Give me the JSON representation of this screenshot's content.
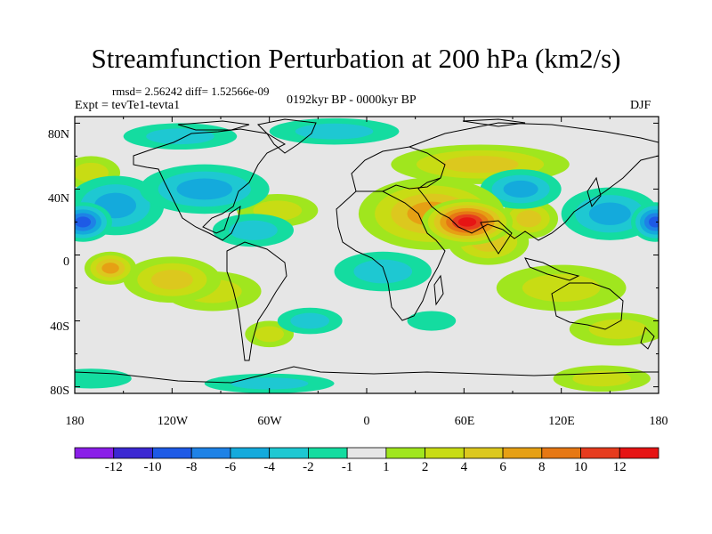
{
  "title": "Streamfunction Perturbation at 200 hPa (km2/s)",
  "stats": "rmsd= 2.56242 diff= 1.52566e-09",
  "experiment": "Expt = tevTe1-tevta1",
  "period": "0192kyr BP - 0000kyr BP",
  "season": "DJF",
  "lat_ticks": [
    "80N",
    "40N",
    "0",
    "40S",
    "80S"
  ],
  "lon_ticks": [
    "180",
    "120W",
    "60W",
    "0",
    "60E",
    "120E",
    "180"
  ],
  "colorbar": {
    "labels": [
      "-12",
      "-10",
      "-8",
      "-6",
      "-4",
      "-2",
      "-1",
      "1",
      "2",
      "4",
      "6",
      "8",
      "10",
      "12"
    ],
    "colors": [
      "#8a1ee8",
      "#3c28d2",
      "#1e5ae6",
      "#1e82e6",
      "#14aadc",
      "#1ec8d2",
      "#14dca0",
      "#e6e6e6",
      "#a0e61e",
      "#c8dc14",
      "#dcc81e",
      "#e6a014",
      "#e67814",
      "#e63c1e",
      "#e61414"
    ]
  },
  "map": {
    "background_color": "#e6e6e6",
    "anomalies": [
      {
        "lon": 62,
        "lat": 20,
        "value": 12,
        "rx": 28,
        "ry": 14
      },
      {
        "lon": 40,
        "lat": 25,
        "value": 6,
        "rx": 45,
        "ry": 22
      },
      {
        "lon": 75,
        "lat": 8,
        "value": 4,
        "rx": 25,
        "ry": 14
      },
      {
        "lon": 100,
        "lat": 22,
        "value": 4,
        "rx": 18,
        "ry": 12
      },
      {
        "lon": 70,
        "lat": 55,
        "value": 4,
        "rx": 55,
        "ry": 12
      },
      {
        "lon": -158,
        "lat": -8,
        "value": 6,
        "rx": 16,
        "ry": 10
      },
      {
        "lon": -120,
        "lat": -15,
        "value": 4,
        "rx": 30,
        "ry": 14
      },
      {
        "lon": -95,
        "lat": -22,
        "value": 2,
        "rx": 30,
        "ry": 12
      },
      {
        "lon": 120,
        "lat": -20,
        "value": 2,
        "rx": 40,
        "ry": 14
      },
      {
        "lon": 155,
        "lat": -45,
        "value": 2,
        "rx": 30,
        "ry": 10
      },
      {
        "lon": -55,
        "lat": 27,
        "value": 2,
        "rx": 25,
        "ry": 10
      },
      {
        "lon": -60,
        "lat": -48,
        "value": 2,
        "rx": 15,
        "ry": 8
      },
      {
        "lon": -170,
        "lat": 50,
        "value": 2,
        "rx": 18,
        "ry": 10
      },
      {
        "lon": 145,
        "lat": -75,
        "value": 2,
        "rx": 30,
        "ry": 8
      },
      {
        "lon": -175,
        "lat": 20,
        "value": -8,
        "rx": 18,
        "ry": 12
      },
      {
        "lon": 178,
        "lat": 20,
        "value": -8,
        "rx": 15,
        "ry": 12
      },
      {
        "lon": -155,
        "lat": 30,
        "value": -4,
        "rx": 30,
        "ry": 18
      },
      {
        "lon": -100,
        "lat": 40,
        "value": -4,
        "rx": 40,
        "ry": 15
      },
      {
        "lon": -70,
        "lat": 15,
        "value": -2,
        "rx": 25,
        "ry": 10
      },
      {
        "lon": 95,
        "lat": 40,
        "value": -4,
        "rx": 25,
        "ry": 12
      },
      {
        "lon": 150,
        "lat": 25,
        "value": -4,
        "rx": 30,
        "ry": 16
      },
      {
        "lon": 10,
        "lat": -10,
        "value": -2,
        "rx": 30,
        "ry": 12
      },
      {
        "lon": -20,
        "lat": 75,
        "value": -2,
        "rx": 40,
        "ry": 8
      },
      {
        "lon": -115,
        "lat": 72,
        "value": -2,
        "rx": 35,
        "ry": 8
      },
      {
        "lon": -35,
        "lat": -40,
        "value": -2,
        "rx": 20,
        "ry": 8
      },
      {
        "lon": 40,
        "lat": -40,
        "value": -1,
        "rx": 15,
        "ry": 6
      },
      {
        "lon": -60,
        "lat": -78,
        "value": -2,
        "rx": 40,
        "ry": 6
      },
      {
        "lon": -170,
        "lat": -75,
        "value": -1,
        "rx": 25,
        "ry": 6
      }
    ]
  }
}
